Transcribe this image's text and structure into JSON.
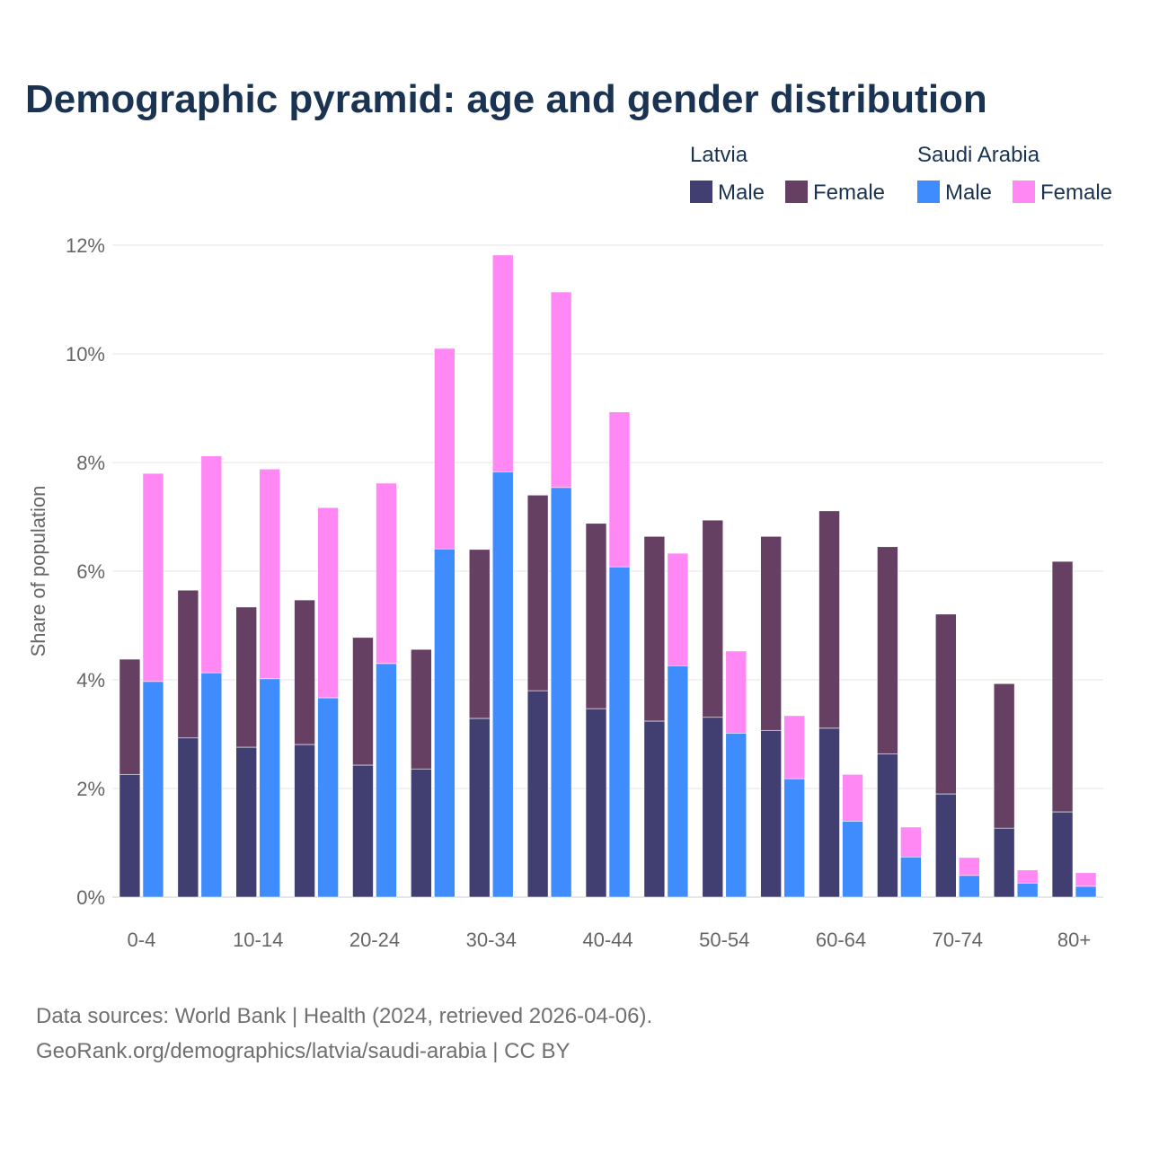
{
  "chart_data": {
    "type": "bar",
    "stacked": true,
    "title": "Demographic pyramid: age and gender distribution",
    "ylabel": "Share of population",
    "xlabel": "",
    "ylim": [
      0,
      12
    ],
    "y_ticks": [
      0,
      2,
      4,
      6,
      8,
      10,
      12
    ],
    "y_tick_suffix": "%",
    "grid": true,
    "legend_position": "top-right",
    "categories": [
      "0-4",
      "5-9",
      "10-14",
      "15-19",
      "20-24",
      "25-29",
      "30-34",
      "35-39",
      "40-44",
      "45-49",
      "50-54",
      "55-59",
      "60-64",
      "65-69",
      "70-74",
      "75-79",
      "80+"
    ],
    "x_tick_labels": [
      "0-4",
      "10-14",
      "20-24",
      "30-34",
      "40-44",
      "50-54",
      "60-64",
      "70-74",
      "80+"
    ],
    "groups": [
      {
        "name": "Latvia",
        "series": [
          {
            "name": "Male",
            "color": "#413f72",
            "values": [
              2.26,
              2.93,
              2.76,
              2.81,
              2.43,
              2.36,
              3.29,
              3.8,
              3.47,
              3.24,
              3.31,
              3.07,
              3.11,
              2.64,
              1.9,
              1.27,
              1.57
            ]
          },
          {
            "name": "Female",
            "color": "#654062",
            "values": [
              2.12,
              2.72,
              2.58,
              2.66,
              2.35,
              2.2,
              3.11,
              3.6,
              3.41,
              3.4,
              3.63,
              3.57,
              4.0,
              3.81,
              3.31,
              2.66,
              4.61
            ]
          }
        ]
      },
      {
        "name": "Saudi Arabia",
        "series": [
          {
            "name": "Male",
            "color": "#3f8cff",
            "values": [
              3.97,
              4.13,
              4.02,
              3.67,
              4.3,
              6.41,
              7.83,
              7.54,
              6.08,
              4.26,
              3.02,
              2.18,
              1.4,
              0.74,
              0.4,
              0.26,
              0.2
            ]
          },
          {
            "name": "Female",
            "color": "#ff88f5",
            "values": [
              3.83,
              3.99,
              3.86,
              3.5,
              3.32,
              3.69,
              3.99,
              3.6,
              2.85,
              2.07,
              1.51,
              1.16,
              0.86,
              0.55,
              0.33,
              0.24,
              0.25
            ]
          }
        ]
      }
    ]
  },
  "footer": {
    "line1": "Data sources: World Bank | Health (2024, retrieved 2026-04-06).",
    "line2": "GeoRank.org/demographics/latvia/saudi-arabia | CC BY"
  }
}
